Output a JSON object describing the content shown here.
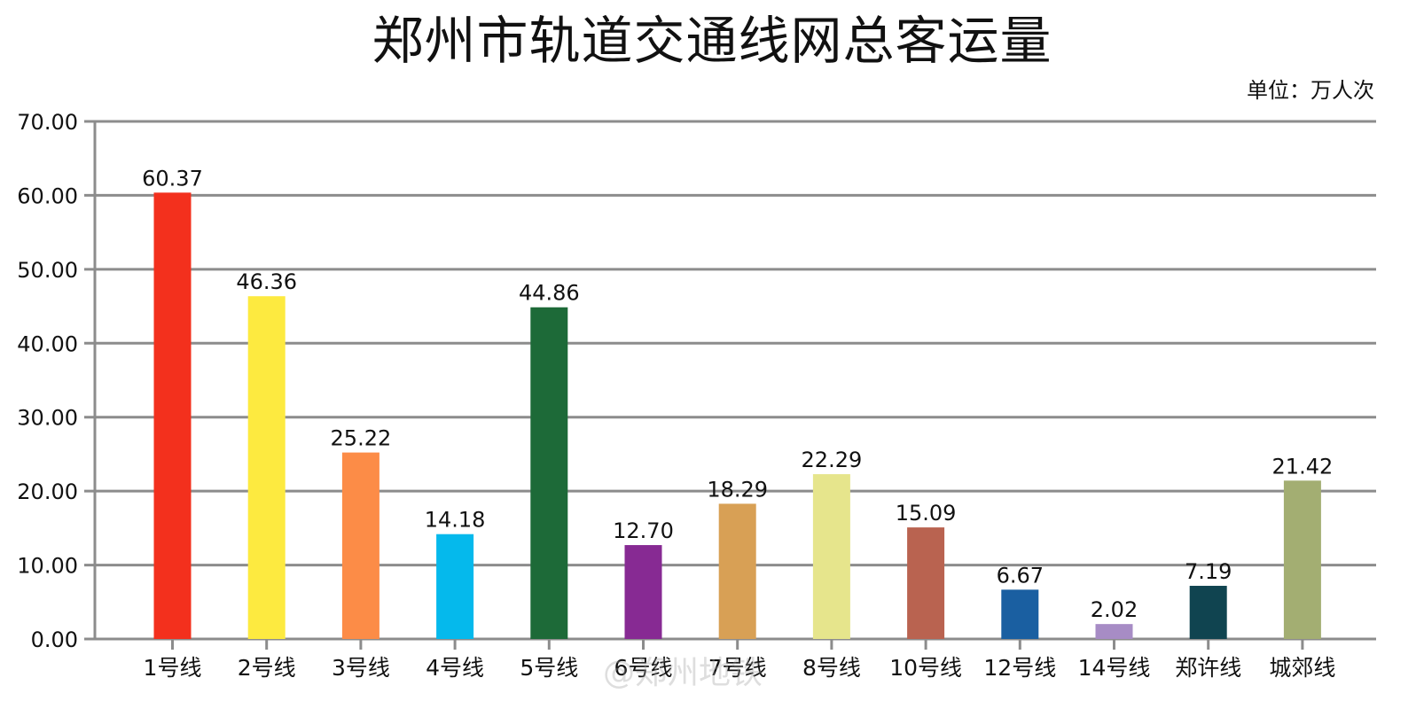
{
  "title": "郑州市轨道交通线网总客运量",
  "unit_label": "单位：万人次",
  "watermark": "@郑州地铁",
  "chart_data": {
    "type": "bar",
    "title": "郑州市轨道交通线网总客运量",
    "subtitle": "单位：万人次",
    "xlabel": "",
    "ylabel": "",
    "ylim": [
      0,
      70
    ],
    "yticks": [
      "0.00",
      "10.00",
      "20.00",
      "30.00",
      "40.00",
      "50.00",
      "60.00",
      "70.00"
    ],
    "grid": true,
    "legend": "none",
    "categories": [
      "1号线",
      "2号线",
      "3号线",
      "4号线",
      "5号线",
      "6号线",
      "7号线",
      "8号线",
      "10号线",
      "12号线",
      "14号线",
      "郑许线",
      "城郊线"
    ],
    "values": [
      60.37,
      46.36,
      25.22,
      14.18,
      44.86,
      12.7,
      18.29,
      22.29,
      15.09,
      6.67,
      2.02,
      7.19,
      21.42
    ],
    "value_labels": [
      "60.37",
      "46.36",
      "25.22",
      "14.18",
      "44.86",
      "12.70",
      "18.29",
      "22.29",
      "15.09",
      "6.67",
      "2.02",
      "7.19",
      "21.42"
    ],
    "colors": [
      "#f3301d",
      "#fdea40",
      "#fc8c47",
      "#05b9ec",
      "#1d6a38",
      "#872a93",
      "#d8a055",
      "#e6e58c",
      "#b96350",
      "#1a5fa1",
      "#a78cc5",
      "#104450",
      "#a3ae72"
    ]
  }
}
